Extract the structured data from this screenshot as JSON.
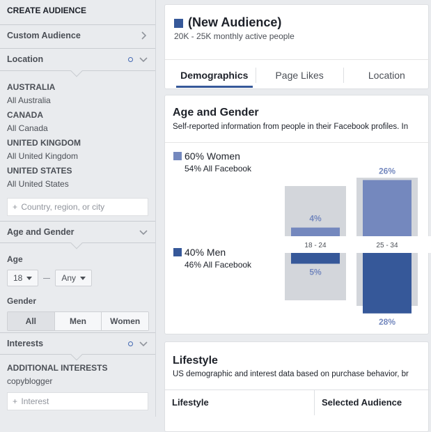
{
  "sidebar": {
    "title": "CREATE AUDIENCE",
    "custom_audience": "Custom Audience",
    "location": {
      "label": "Location",
      "entries": [
        {
          "country": "AUSTRALIA",
          "sub": "All Australia"
        },
        {
          "country": "CANADA",
          "sub": "All Canada"
        },
        {
          "country": "UNITED KINGDOM",
          "sub": "All United Kingdom"
        },
        {
          "country": "UNITED STATES",
          "sub": "All United States"
        }
      ],
      "placeholder": "Country, region, or city"
    },
    "age_gender": {
      "label": "Age and Gender",
      "age_label": "Age",
      "age_min": "18",
      "age_max": "Any",
      "gender_label": "Gender",
      "gender_options": [
        "All",
        "Men",
        "Women"
      ],
      "gender_selected": "All"
    },
    "interests": {
      "label": "Interests",
      "additional_label": "ADDITIONAL INTERESTS",
      "value": "copyblogger",
      "placeholder": "Interest"
    }
  },
  "header": {
    "title": "(New Audience)",
    "subtitle": "20K - 25K monthly active people",
    "tabs": [
      "Demographics",
      "Page Likes",
      "Location"
    ],
    "active_tab": "Demographics"
  },
  "age_gender_card": {
    "title": "Age and Gender",
    "subtitle": "Self-reported information from people in their Facebook profiles. In",
    "women": {
      "label": "60% Women",
      "sub": "54% All Facebook",
      "color": "#7488be"
    },
    "men": {
      "label": "40% Men",
      "sub": "46% All Facebook",
      "color": "#365899"
    }
  },
  "chart_data": {
    "type": "bar",
    "categories": [
      "18 - 24",
      "25 - 34"
    ],
    "series": [
      {
        "name": "Women",
        "values": [
          4,
          26
        ],
        "labels": [
          "4%",
          "26%"
        ],
        "color": "#7488be"
      },
      {
        "name": "Men",
        "values": [
          5,
          28
        ],
        "labels": [
          "5%",
          "28%"
        ],
        "color": "#365899"
      }
    ],
    "background_color": "#d3d6db"
  },
  "lifestyle_card": {
    "title": "Lifestyle",
    "subtitle": "US demographic and interest data based on purchase behavior, br",
    "columns": [
      "Lifestyle",
      "Selected Audience"
    ]
  },
  "icons": {
    "chevron": "chevron-icon",
    "plus": "+"
  }
}
